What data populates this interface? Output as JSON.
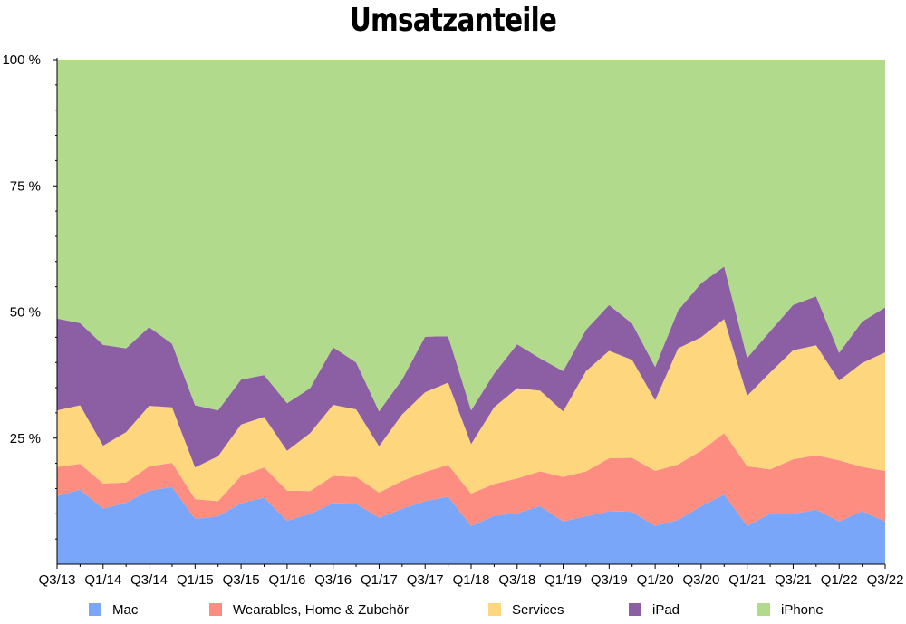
{
  "chart_data": {
    "type": "area",
    "stacked": true,
    "title": "Umsatzanteile",
    "y_ticks": [
      "25 %",
      "50 %",
      "75 %",
      "100 %"
    ],
    "y_tick_values": [
      25,
      50,
      75,
      100
    ],
    "ylim": [
      0,
      100
    ],
    "x_tick_labels": [
      "Q3/13",
      "Q1/14",
      "Q3/14",
      "Q1/15",
      "Q3/15",
      "Q1/16",
      "Q3/16",
      "Q1/17",
      "Q3/17",
      "Q1/18",
      "Q3/18",
      "Q1/19",
      "Q3/19",
      "Q1/20",
      "Q3/20",
      "Q1/21",
      "Q3/21",
      "Q1/22",
      "Q3/22"
    ],
    "x": [
      "Q3/13",
      "Q4/13",
      "Q1/14",
      "Q2/14",
      "Q3/14",
      "Q4/14",
      "Q1/15",
      "Q2/15",
      "Q3/15",
      "Q4/15",
      "Q1/16",
      "Q2/16",
      "Q3/16",
      "Q4/16",
      "Q1/17",
      "Q2/17",
      "Q3/17",
      "Q4/17",
      "Q1/18",
      "Q2/18",
      "Q3/18",
      "Q4/18",
      "Q1/19",
      "Q2/19",
      "Q3/19",
      "Q4/19",
      "Q1/20",
      "Q2/20",
      "Q3/20",
      "Q4/20",
      "Q1/21",
      "Q2/21",
      "Q3/21",
      "Q4/21",
      "Q1/22",
      "Q2/22",
      "Q3/22"
    ],
    "grid": false,
    "legend_position": "bottom",
    "series": [
      {
        "name": "Mac",
        "color": "#7aa6fa",
        "values": [
          13.5,
          14.8,
          11,
          12.2,
          14.6,
          15.3,
          9,
          9.5,
          12.1,
          13.2,
          8.6,
          10,
          12.1,
          12,
          9.2,
          11,
          12.5,
          13.4,
          7.6,
          9.6,
          10.1,
          11.5,
          8.5,
          9.5,
          10.5,
          10.4,
          7.6,
          8.8,
          11.5,
          13.8,
          7.6,
          10,
          10,
          10.8,
          8.5,
          10.5,
          8.5
        ]
      },
      {
        "name": "Wearables, Home & Zubehör",
        "color": "#fd8d80",
        "values": [
          5.8,
          5.1,
          5,
          4,
          4.8,
          4.8,
          3.9,
          3,
          5.4,
          6,
          6,
          4.5,
          5.4,
          5.3,
          5,
          5.5,
          5.8,
          6.3,
          6.4,
          6.3,
          6.9,
          6.9,
          8.8,
          8.9,
          10.5,
          10.7,
          10.9,
          11,
          11,
          12.2,
          11.8,
          8.8,
          10.8,
          10.8,
          12.1,
          8.8,
          10
        ]
      },
      {
        "name": "Services",
        "color": "#fdd67e",
        "values": [
          11.2,
          11.6,
          7.5,
          10,
          12,
          11,
          6.3,
          8.9,
          10.2,
          10,
          7.9,
          11.5,
          14.1,
          13.4,
          9.2,
          13.2,
          15.8,
          16.3,
          9.8,
          15.2,
          17.9,
          16,
          13,
          19.9,
          21.3,
          19.4,
          14,
          23,
          22.5,
          22.6,
          14,
          19.2,
          21.6,
          21.8,
          15.8,
          20.6,
          23.5
        ]
      },
      {
        "name": "iPad",
        "color": "#8c5ea4",
        "values": [
          18.2,
          16.3,
          20,
          16.6,
          15.6,
          12.6,
          12.3,
          9.1,
          8.9,
          8.3,
          9.4,
          8.9,
          11.4,
          9.3,
          6.9,
          6.9,
          11,
          9.2,
          6.7,
          6.7,
          8.7,
          6.4,
          8,
          8.2,
          9.1,
          7.2,
          6.6,
          7.5,
          10.7,
          10.4,
          7.5,
          8.2,
          9,
          9.7,
          5.5,
          8.2,
          8.9
        ]
      },
      {
        "name": "iPhone",
        "color": "#b1da8c",
        "values": [
          51.3,
          52.2,
          56.5,
          57.2,
          53,
          56.3,
          68.5,
          69.5,
          63.4,
          62.5,
          68.1,
          65.1,
          57,
          60,
          69.7,
          63.4,
          54.9,
          54.8,
          69.5,
          62.2,
          56.4,
          59.2,
          61.7,
          53.5,
          48.6,
          52.3,
          60.9,
          49.7,
          44.3,
          41,
          59.1,
          53.8,
          48.6,
          46.9,
          58.1,
          51.9,
          49.1
        ]
      }
    ]
  }
}
